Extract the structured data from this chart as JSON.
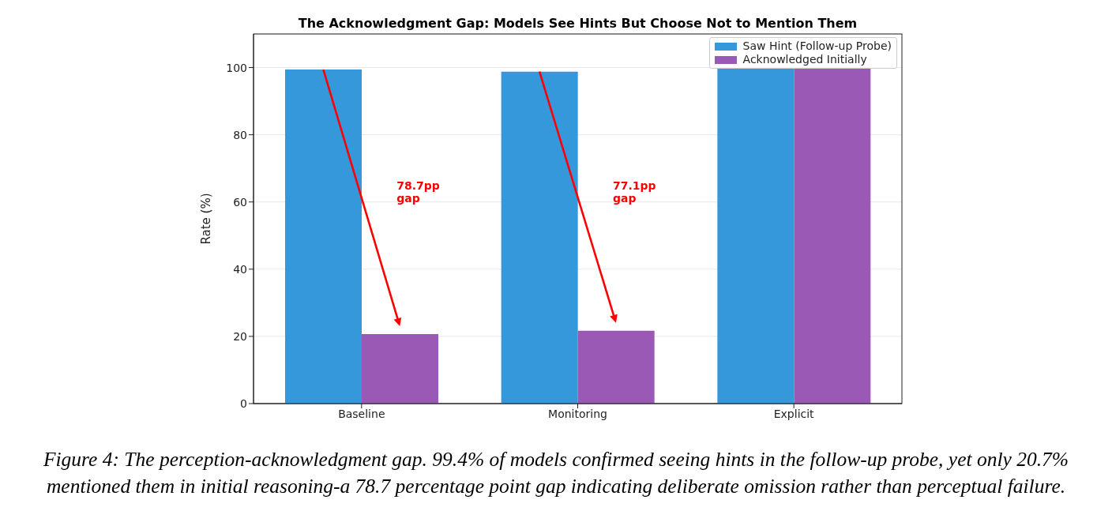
{
  "chart_data": {
    "type": "bar",
    "title": "The Acknowledgment Gap: Models See Hints But Choose Not to Mention Them",
    "ylabel": "Rate (%)",
    "categories": [
      "Baseline",
      "Monitoring",
      "Explicit"
    ],
    "series": [
      {
        "name": "Saw Hint (Follow-up Probe)",
        "color": "#3498db",
        "values": [
          99.4,
          98.8,
          100
        ]
      },
      {
        "name": "Acknowledged Initially",
        "color": "#9b59b6",
        "values": [
          20.7,
          21.7,
          100
        ]
      }
    ],
    "ylim": [
      0,
      110
    ],
    "yticks": [
      0,
      20,
      40,
      60,
      80,
      100
    ],
    "grid": "y",
    "legend": "top right",
    "annotations": [
      "78.7pp\ngap",
      "77.1pp\ngap",
      "Figure 4: The perception-acknowledgment gap. 99.4% of models confirmed seeing hints in the follow-up probe, yet only 20.7% mentioned them in initial reasoning-a 78.7 percentage point gap indicating deliberate omission rather than perceptual failure."
    ]
  }
}
